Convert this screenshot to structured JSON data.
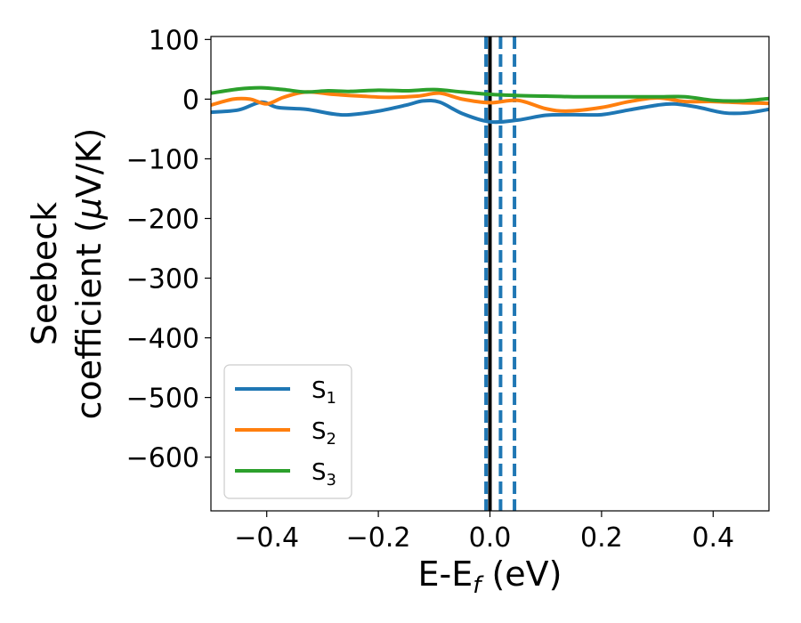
{
  "chart_data": {
    "type": "line",
    "title": "",
    "xlabel": "E-E",
    "xlabel_sub": "f",
    "xlabel_unit": " (eV)",
    "ylabel_line1": "Seebeck",
    "ylabel_line2_pre": "coefficient  (",
    "ylabel_mu": "μ",
    "ylabel_line2_post": "V/K)",
    "xlim": [
      -0.5,
      0.5
    ],
    "ylim": [
      -690,
      105
    ],
    "xticks": [
      -0.4,
      -0.2,
      0.0,
      0.2,
      0.4
    ],
    "xtick_labels": [
      "−0.4",
      "−0.2",
      "0.0",
      "0.2",
      "0.4"
    ],
    "yticks": [
      100,
      0,
      -100,
      -200,
      -300,
      -400,
      -500,
      -600
    ],
    "ytick_labels": [
      "100",
      "0",
      "−100",
      "−200",
      "−300",
      "−400",
      "−500",
      "−600"
    ],
    "grid": false,
    "legend_position": "lower-left",
    "series": [
      {
        "name": "S",
        "name_sub": "1",
        "color": "#1f77b4",
        "x": [
          -0.5,
          -0.45,
          -0.41,
          -0.38,
          -0.33,
          -0.28,
          -0.25,
          -0.2,
          -0.15,
          -0.12,
          -0.09,
          -0.05,
          0.0,
          0.05,
          0.1,
          0.15,
          0.2,
          0.25,
          0.3,
          0.33,
          0.37,
          0.42,
          0.46,
          0.5
        ],
        "y": [
          -22,
          -18,
          -5,
          -14,
          -17,
          -25,
          -26,
          -20,
          -10,
          -3,
          -5,
          -24,
          -38,
          -35,
          -27,
          -26,
          -26,
          -18,
          -10,
          -8,
          -13,
          -23,
          -23,
          -17
        ]
      },
      {
        "name": "S",
        "name_sub": "2",
        "color": "#ff7f0e",
        "x": [
          -0.5,
          -0.46,
          -0.43,
          -0.4,
          -0.37,
          -0.33,
          -0.28,
          -0.23,
          -0.18,
          -0.13,
          -0.09,
          -0.05,
          0.0,
          0.05,
          0.1,
          0.14,
          0.2,
          0.25,
          0.3,
          0.35,
          0.4,
          0.45,
          0.5
        ],
        "y": [
          -10,
          0,
          0,
          -8,
          3,
          12,
          8,
          5,
          3,
          5,
          10,
          0,
          -6,
          -2,
          -16,
          -20,
          -14,
          -4,
          2,
          -4,
          -4,
          -6,
          -7
        ]
      },
      {
        "name": "S",
        "name_sub": "3",
        "color": "#2ca02c",
        "x": [
          -0.5,
          -0.45,
          -0.41,
          -0.37,
          -0.33,
          -0.29,
          -0.25,
          -0.2,
          -0.15,
          -0.1,
          -0.05,
          0.0,
          0.05,
          0.1,
          0.15,
          0.2,
          0.25,
          0.3,
          0.35,
          0.4,
          0.45,
          0.5
        ],
        "y": [
          10,
          17,
          19,
          16,
          12,
          14,
          13,
          15,
          14,
          16,
          12,
          8,
          6,
          5,
          4,
          4,
          4,
          4,
          4,
          -2,
          -3,
          1
        ]
      }
    ],
    "vlines": [
      {
        "x": 0.0,
        "color": "#000000",
        "style": "solid"
      },
      {
        "x": -0.007,
        "color": "#1f77b4",
        "style": "dashed"
      },
      {
        "x": 0.019,
        "color": "#1f77b4",
        "style": "dashed"
      },
      {
        "x": 0.044,
        "color": "#1f77b4",
        "style": "dashed"
      }
    ]
  }
}
